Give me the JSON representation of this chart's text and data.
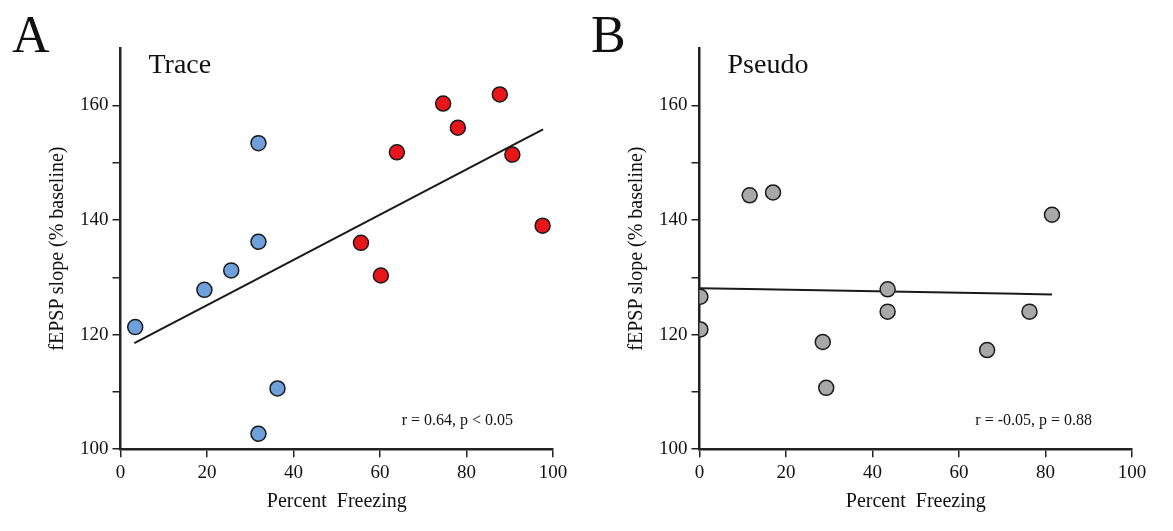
{
  "chart_data": [
    {
      "type": "scatter",
      "title": "A",
      "xlabel": "Percent  Freezing",
      "ylabel": "fEPSP slope (% baseline)",
      "annotations": [
        "Trace",
        "r = 0.64, p < 0.05"
      ],
      "xlim": [
        0,
        100
      ],
      "ylim": [
        100,
        170
      ],
      "xticks": [
        0,
        20,
        40,
        60,
        80,
        100
      ],
      "yticks": [
        100,
        {
          "value": 110,
          "label": null
        },
        120,
        {
          "value": 130,
          "label": null
        },
        140,
        {
          "value": 150,
          "label": null
        },
        160
      ],
      "grid": false,
      "legend": false,
      "series": [
        {
          "marker": "circle",
          "color": "#6fa0dc",
          "x": [
            3.4,
            19.4,
            25.6,
            31.9,
            31.9,
            36.3,
            31.9
          ],
          "values": [
            121.3,
            127.8,
            131.2,
            136.2,
            153.4,
            110.6,
            102.7
          ]
        },
        {
          "marker": "circle",
          "color": "#e8161b",
          "x": [
            55.6,
            60.2,
            63.9,
            74.6,
            78.0,
            87.7,
            90.6,
            97.6
          ],
          "values": [
            136.0,
            130.3,
            151.8,
            160.3,
            156.1,
            161.9,
            151.4,
            139.0
          ]
        },
        {
          "type": "line",
          "marker": "none",
          "color": "#1a1a1a",
          "x": [
            3.2,
            97.7
          ],
          "values": [
            118.5,
            155.8
          ]
        }
      ]
    },
    {
      "type": "scatter",
      "title": "B",
      "xlabel": "Percent  Freezing",
      "ylabel": "fEPSP slope (% baseline)",
      "annotations": [
        "Pseudo",
        "r = -0.05, p = 0.88"
      ],
      "xlim": [
        0,
        100
      ],
      "ylim": [
        100,
        170
      ],
      "xticks": [
        0,
        20,
        40,
        60,
        80,
        100
      ],
      "yticks": [
        100,
        {
          "value": 110,
          "label": null
        },
        120,
        {
          "value": 130,
          "label": null
        },
        140,
        {
          "value": 150,
          "label": null
        },
        160
      ],
      "grid": false,
      "legend": false,
      "series": [
        {
          "marker": "circle",
          "color": "#a8a8a8",
          "x": [
            0.2,
            0.2,
            11.6,
            17.0,
            28.5,
            29.3,
            43.5,
            43.5,
            66.5,
            76.3,
            81.5
          ],
          "values": [
            126.6,
            120.9,
            144.3,
            144.8,
            118.7,
            110.7,
            127.9,
            124.0,
            117.3,
            124.0,
            140.9
          ]
        },
        {
          "type": "line",
          "marker": "none",
          "color": "#1a1a1a",
          "x": [
            0,
            81.5
          ],
          "values": [
            128.1,
            127.0
          ]
        }
      ]
    }
  ]
}
